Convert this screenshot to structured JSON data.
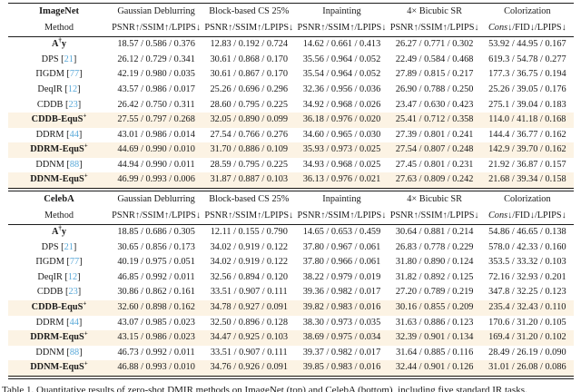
{
  "page": {
    "caption": "Table 1. Quantitative results of zero-shot DMIR methods on ImageNet (top) and CelebA (bottom), including five standard IR tasks."
  },
  "colors": {
    "highlight_row": "#fcf3e4",
    "citation_link": "#58a8d8",
    "rule": "#1b1b1b",
    "text": "#1a1a1a"
  },
  "tables": [
    {
      "dataset": "ImageNet",
      "method_label": "Method",
      "tasks": [
        "Gaussian Deblurring",
        "Block-based CS 25%",
        "Inpainting",
        "4× Bicubic SR",
        "Colorization"
      ],
      "metrics": [
        "PSNR↑/SSIM↑/LPIPS↓",
        "PSNR↑/SSIM↑/LPIPS↓",
        "PSNR↑/SSIM↑/LPIPS↓",
        "PSNR↑/SSIM↑/LPIPS↓",
        "Cons↓/FID↓/LPIPS↓"
      ],
      "rows": [
        {
          "method": "A†y",
          "cite": "",
          "bold": true,
          "highlight": false,
          "cells": [
            "18.57 / 0.586 / 0.376",
            "12.83 / 0.192 / 0.724",
            "14.62 / 0.661 / 0.413",
            "26.27 / 0.771 / 0.302",
            "53.92 / 44.95 / 0.167"
          ]
        },
        {
          "method": "DPS",
          "cite": "21",
          "bold": false,
          "highlight": false,
          "cells": [
            "26.12 / 0.729 / 0.341",
            "30.61 / 0.868 / 0.170",
            "35.56 / 0.964 / 0.052",
            "22.49 / 0.584 / 0.468",
            "619.3 / 54.78 / 0.277"
          ]
        },
        {
          "method": "ΠGDM",
          "cite": "77",
          "bold": false,
          "highlight": false,
          "cells": [
            "42.19 / 0.980 / 0.035",
            "30.61 / 0.867 / 0.170",
            "35.54 / 0.964 / 0.052",
            "27.89 / 0.815 / 0.217",
            "177.3 / 36.75 / 0.194"
          ]
        },
        {
          "method": "DeqIR",
          "cite": "12",
          "bold": false,
          "highlight": false,
          "cells": [
            "43.57 / 0.986 / 0.017",
            "25.26 / 0.696 / 0.296",
            "32.36 / 0.956 / 0.036",
            "26.90 / 0.788 / 0.250",
            "25.26 / 39.05 / 0.176"
          ]
        },
        {
          "method": "CDDB",
          "cite": "23",
          "bold": false,
          "highlight": false,
          "cells": [
            "26.42 / 0.750 / 0.311",
            "28.60 / 0.795 / 0.225",
            "34.92 / 0.968 / 0.026",
            "23.47 / 0.630 / 0.423",
            "275.1 / 39.04 / 0.183"
          ]
        },
        {
          "method": "CDDB-EquS+",
          "cite": "",
          "bold": true,
          "highlight": true,
          "cells": [
            "27.55 / 0.797 / 0.268",
            "32.05 / 0.890 / 0.099",
            "36.18 / 0.976 / 0.020",
            "25.41 / 0.712 / 0.358",
            "114.0 / 41.18 / 0.168"
          ]
        },
        {
          "method": "DDRM",
          "cite": "44",
          "bold": false,
          "highlight": false,
          "cells": [
            "43.01 / 0.986 / 0.014",
            "27.54 / 0.766 / 0.276",
            "34.60 / 0.965 / 0.030",
            "27.39 / 0.801 / 0.241",
            "144.4 / 36.77 / 0.162"
          ]
        },
        {
          "method": "DDRM-EquS+",
          "cite": "",
          "bold": true,
          "highlight": true,
          "cells": [
            "44.69 / 0.990 / 0.010",
            "31.70 / 0.886 / 0.109",
            "35.93 / 0.973 / 0.025",
            "27.54 / 0.807 / 0.248",
            "142.9 / 39.70 / 0.162"
          ]
        },
        {
          "method": "DDNM",
          "cite": "88",
          "bold": false,
          "highlight": false,
          "cells": [
            "44.94 / 0.990 / 0.011",
            "28.59 / 0.795 / 0.225",
            "34.93 / 0.968 / 0.025",
            "27.45 / 0.801 / 0.231",
            "21.92 / 36.87 / 0.157"
          ]
        },
        {
          "method": "DDNM-EquS+",
          "cite": "",
          "bold": true,
          "highlight": true,
          "cells": [
            "46.99 / 0.993 / 0.006",
            "31.87 / 0.887 / 0.103",
            "36.13 / 0.976 / 0.021",
            "27.63 / 0.809 / 0.242",
            "21.68 / 39.34 / 0.158"
          ]
        }
      ]
    },
    {
      "dataset": "CelebA",
      "method_label": "Method",
      "tasks": [
        "Gaussian Deblurring",
        "Block-based CS 25%",
        "Inpainting",
        "4× Bicubic SR",
        "Colorization"
      ],
      "metrics": [
        "PSNR↑/SSIM↑/LPIPS↓",
        "PSNR↑/SSIM↑/LPIPS↓",
        "PSNR↑/SSIM↑/LPIPS↓",
        "PSNR↑/SSIM↑/LPIPS↓",
        "Cons↓/FID↓/LPIPS↓"
      ],
      "rows": [
        {
          "method": "A†y",
          "cite": "",
          "bold": true,
          "highlight": false,
          "cells": [
            "18.85 / 0.686 / 0.305",
            "12.11 / 0.155 / 0.790",
            "14.65 / 0.653 / 0.459",
            "30.64 / 0.881 / 0.214",
            "54.86 / 46.65 / 0.138"
          ]
        },
        {
          "method": "DPS",
          "cite": "21",
          "bold": false,
          "highlight": false,
          "cells": [
            "30.65 / 0.856 / 0.173",
            "34.02 / 0.919 / 0.122",
            "37.80 / 0.967 / 0.061",
            "26.83 / 0.778 / 0.229",
            "578.0 / 42.33 / 0.160"
          ]
        },
        {
          "method": "ΠGDM",
          "cite": "77",
          "bold": false,
          "highlight": false,
          "cells": [
            "40.19 / 0.975 / 0.051",
            "34.02 / 0.919 / 0.122",
            "37.80 / 0.966 / 0.061",
            "31.80 / 0.890 / 0.124",
            "353.5 / 33.32 / 0.103"
          ]
        },
        {
          "method": "DeqIR",
          "cite": "12",
          "bold": false,
          "highlight": false,
          "cells": [
            "46.85 / 0.992 / 0.011",
            "32.56 / 0.894 / 0.120",
            "38.22 / 0.979 / 0.019",
            "31.82 / 0.892 / 0.125",
            "72.16 / 32.93 / 0.201"
          ]
        },
        {
          "method": "CDDB",
          "cite": "23",
          "bold": false,
          "highlight": false,
          "cells": [
            "30.86 / 0.862 / 0.161",
            "33.51 / 0.907 / 0.111",
            "39.36 / 0.982 / 0.017",
            "27.20 / 0.789 / 0.219",
            "347.8 / 32.25 / 0.123"
          ]
        },
        {
          "method": "CDDB-EquS+",
          "cite": "",
          "bold": true,
          "highlight": true,
          "cells": [
            "32.60 / 0.898 / 0.162",
            "34.78 / 0.927 / 0.091",
            "39.82 / 0.983 / 0.016",
            "30.16 / 0.855 / 0.209",
            "235.4 / 32.43 / 0.110"
          ]
        },
        {
          "method": "DDRM",
          "cite": "44",
          "bold": false,
          "highlight": false,
          "cells": [
            "43.07 / 0.985 / 0.023",
            "32.50 / 0.896 / 0.128",
            "38.30 / 0.973 / 0.035",
            "31.63 / 0.886 / 0.123",
            "170.6 / 31.20 / 0.105"
          ]
        },
        {
          "method": "DDRM-EquS+",
          "cite": "",
          "bold": true,
          "highlight": true,
          "cells": [
            "43.15 / 0.986 / 0.023",
            "34.47 / 0.925 / 0.103",
            "38.69 / 0.975 / 0.034",
            "32.39 / 0.901 / 0.134",
            "169.4 / 31.20 / 0.102"
          ]
        },
        {
          "method": "DDNM",
          "cite": "88",
          "bold": false,
          "highlight": false,
          "cells": [
            "46.73 / 0.992 / 0.011",
            "33.51 / 0.907 / 0.111",
            "39.37 / 0.982 / 0.017",
            "31.64 / 0.885 / 0.116",
            "28.49 / 26.19 / 0.090"
          ]
        },
        {
          "method": "DDNM-EquS+",
          "cite": "",
          "bold": true,
          "highlight": true,
          "cells": [
            "46.88 / 0.993 / 0.010",
            "34.76 / 0.926 / 0.091",
            "39.85 / 0.983 / 0.016",
            "32.44 / 0.901 / 0.126",
            "31.01 / 26.08 / 0.086"
          ]
        }
      ]
    }
  ]
}
